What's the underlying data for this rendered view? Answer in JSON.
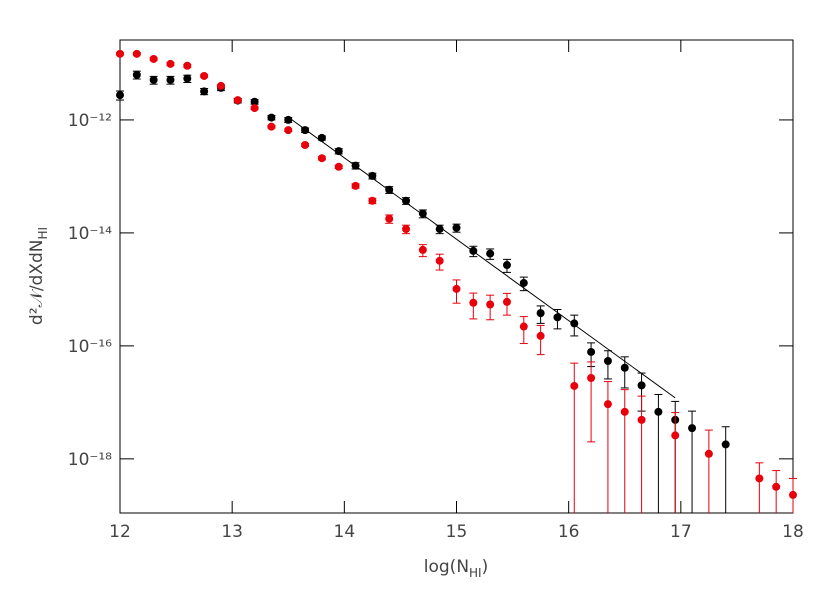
{
  "chart_data": {
    "type": "scatter",
    "xlabel": {
      "main": "log(N",
      "sub": "HI",
      "end": ")"
    },
    "ylabel": {
      "main": "d²𝒩/dXdN",
      "sub": "HI"
    },
    "xlim": [
      12,
      18
    ],
    "xticks": [
      12,
      13,
      14,
      15,
      16,
      17,
      18
    ],
    "ylim": [
      1.1e-19,
      2.6e-11
    ],
    "log_y": true,
    "yticks": [
      {
        "value": 1e-12,
        "label": "10⁻¹²"
      },
      {
        "value": 1e-14,
        "label": "10⁻¹⁴"
      },
      {
        "value": 1e-16,
        "label": "10⁻¹⁶"
      },
      {
        "value": 1e-18,
        "label": "10⁻¹⁸"
      }
    ],
    "series": [
      {
        "color": "#000000",
        "x": [
          12.0,
          12.15,
          12.3,
          12.45,
          12.6,
          12.75,
          12.9,
          13.05,
          13.2,
          13.35,
          13.5,
          13.65,
          13.8,
          13.95,
          14.1,
          14.25,
          14.4,
          14.55,
          14.7,
          14.85,
          15.0,
          15.15,
          15.3,
          15.45,
          15.6,
          15.75,
          15.9,
          16.05,
          16.2,
          16.35,
          16.5,
          16.65,
          16.8,
          16.95,
          17.1,
          17.4
        ],
        "values": [
          2.75e-12,
          6.3e-12,
          5.1e-12,
          5.1e-12,
          5.4e-12,
          3.2e-12,
          3.7e-12,
          2.2e-12,
          2.1e-12,
          1.1e-12,
          1e-12,
          6.6e-13,
          4.8e-13,
          2.8e-13,
          1.55e-13,
          1.02e-13,
          5.8e-14,
          3.7e-14,
          2.2e-14,
          1.17e-14,
          1.23e-14,
          4.8e-15,
          4.3e-15,
          2.7e-15,
          1.3e-15,
          3.8e-16,
          3.2e-16,
          2.5e-16,
          7.8e-17,
          5.4e-17,
          4.1e-17,
          2e-17,
          6.8e-18,
          4.9e-18,
          3.5e-18,
          1.8e-18
        ],
        "errors": [
          5e-13,
          1e-12,
          8e-13,
          8e-13,
          8e-13,
          4e-13,
          4e-13,
          2e-13,
          2e-13,
          1e-13,
          1e-13,
          6e-14,
          4e-14,
          3e-14,
          2e-14,
          1.2e-14,
          8e-15,
          5e-15,
          3.5e-15,
          2e-15,
          2e-15,
          1e-15,
          9e-16,
          7e-16,
          3.5e-16,
          1.3e-16,
          1.2e-16,
          1e-16,
          3.5e-17,
          2.8e-17,
          2.3e-17,
          1.3e-17,
          7e-18,
          5.5e-18,
          3.5e-18,
          1.9e-18
        ]
      },
      {
        "color": "#e8000b",
        "x": [
          12.0,
          12.15,
          12.3,
          12.45,
          12.6,
          12.75,
          12.9,
          13.05,
          13.2,
          13.35,
          13.5,
          13.65,
          13.8,
          13.95,
          14.1,
          14.25,
          14.4,
          14.55,
          14.7,
          14.85,
          15.0,
          15.15,
          15.3,
          15.45,
          15.6,
          15.75,
          16.05,
          16.2,
          16.35,
          16.5,
          16.65,
          16.95,
          17.25,
          17.7,
          17.85,
          18.0
        ],
        "values": [
          1.48e-11,
          1.48e-11,
          1.2e-11,
          9.8e-12,
          9.1e-12,
          6e-12,
          4e-12,
          2.24e-12,
          1.62e-12,
          7.6e-13,
          6.6e-13,
          3.6e-13,
          2.1e-13,
          1.48e-13,
          6.8e-14,
          3.7e-14,
          1.78e-14,
          1.17e-14,
          5e-15,
          3.2e-15,
          1.02e-15,
          5.8e-16,
          5.4e-16,
          6e-16,
          2.2e-16,
          1.5e-16,
          1.95e-17,
          2.7e-17,
          9.3e-18,
          6.8e-18,
          4.9e-18,
          2.6e-18,
          1.23e-18,
          4.5e-19,
          3.2e-19,
          2.3e-19
        ],
        "errors": [
          7e-13,
          7e-13,
          6e-13,
          5e-13,
          5e-13,
          3e-13,
          2e-13,
          1.1e-13,
          8e-14,
          4e-14,
          3.5e-14,
          2e-14,
          1.3e-14,
          1e-14,
          6e-15,
          4e-15,
          3e-15,
          2e-15,
          1.2e-15,
          1e-15,
          4.5e-16,
          2.8e-16,
          2.5e-16,
          2.5e-16,
          1.1e-16,
          8e-17,
          3e-17,
          2.5e-17,
          1.4e-17,
          1e-17,
          8e-18,
          4e-18,
          2e-18,
          4e-19,
          3e-19,
          2.2e-19
        ]
      }
    ],
    "fit": {
      "color": "#000000",
      "x": [
        13.5,
        16.95
      ],
      "values": [
        1.12e-12,
        1.2e-17
      ]
    }
  }
}
